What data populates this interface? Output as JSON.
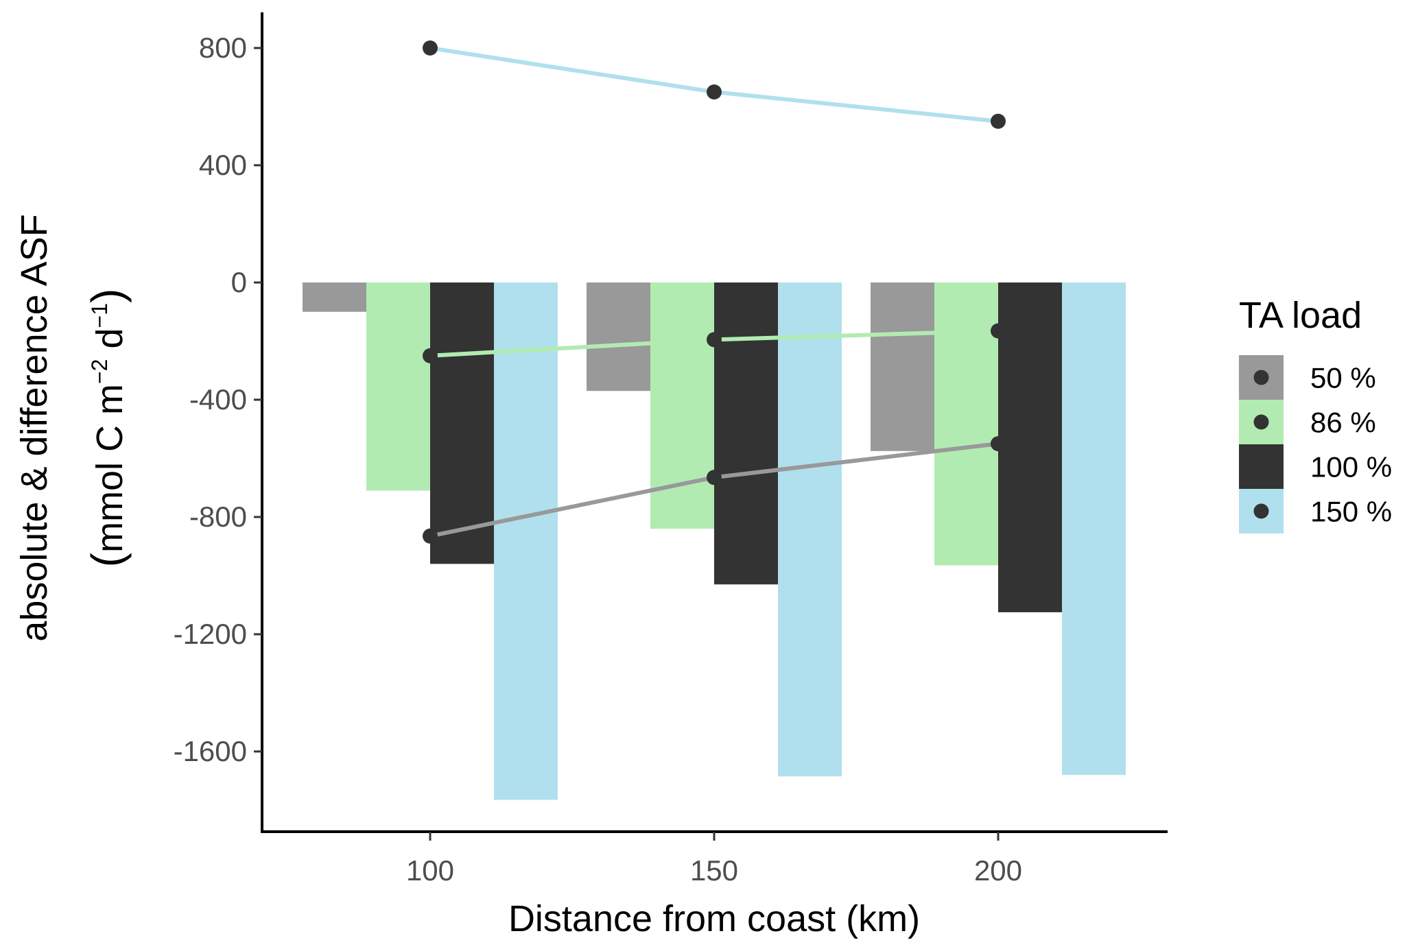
{
  "chart_data": {
    "type": "bar",
    "xlabel": "Distance from coast (km)",
    "ylabel_line1": "absolute & difference ASF",
    "ylabel_line2": {
      "open": "(",
      "prefix": "mmol C m",
      "sup1": "−2",
      "mid": " d",
      "sup2": "−1",
      "close": ")"
    },
    "categories": [
      "100",
      "150",
      "200"
    ],
    "y_ticks": [
      "800",
      "400",
      "0",
      "-400",
      "-800",
      "-1200",
      "-1600"
    ],
    "y_tick_values": [
      800,
      400,
      0,
      -400,
      -800,
      -1200,
      -1600
    ],
    "ylim": [
      -1850,
      920
    ],
    "grid": false,
    "legend_position": "right",
    "legend_title": "TA load",
    "bars": [
      {
        "name": "50 %",
        "color": "#999999",
        "values": [
          -100,
          -370,
          -575
        ]
      },
      {
        "name": "86 %",
        "color": "#b2ebb2",
        "values": [
          -710,
          -840,
          -965
        ]
      },
      {
        "name": "100 %",
        "color": "#333333",
        "values": [
          -960,
          -1030,
          -1125
        ]
      },
      {
        "name": "150 %",
        "color": "#b0e0ee",
        "values": [
          -1765,
          -1685,
          -1680
        ]
      }
    ],
    "difference_lines": [
      {
        "name": "50 %",
        "color": "#999999",
        "values": [
          -865,
          -665,
          -550
        ]
      },
      {
        "name": "86 %",
        "color": "#b2ebb2",
        "values": [
          -250,
          -195,
          -165
        ]
      },
      {
        "name": "150 %",
        "color": "#b0e0ee",
        "values": [
          800,
          650,
          550
        ]
      }
    ],
    "point_color": "#333333"
  }
}
